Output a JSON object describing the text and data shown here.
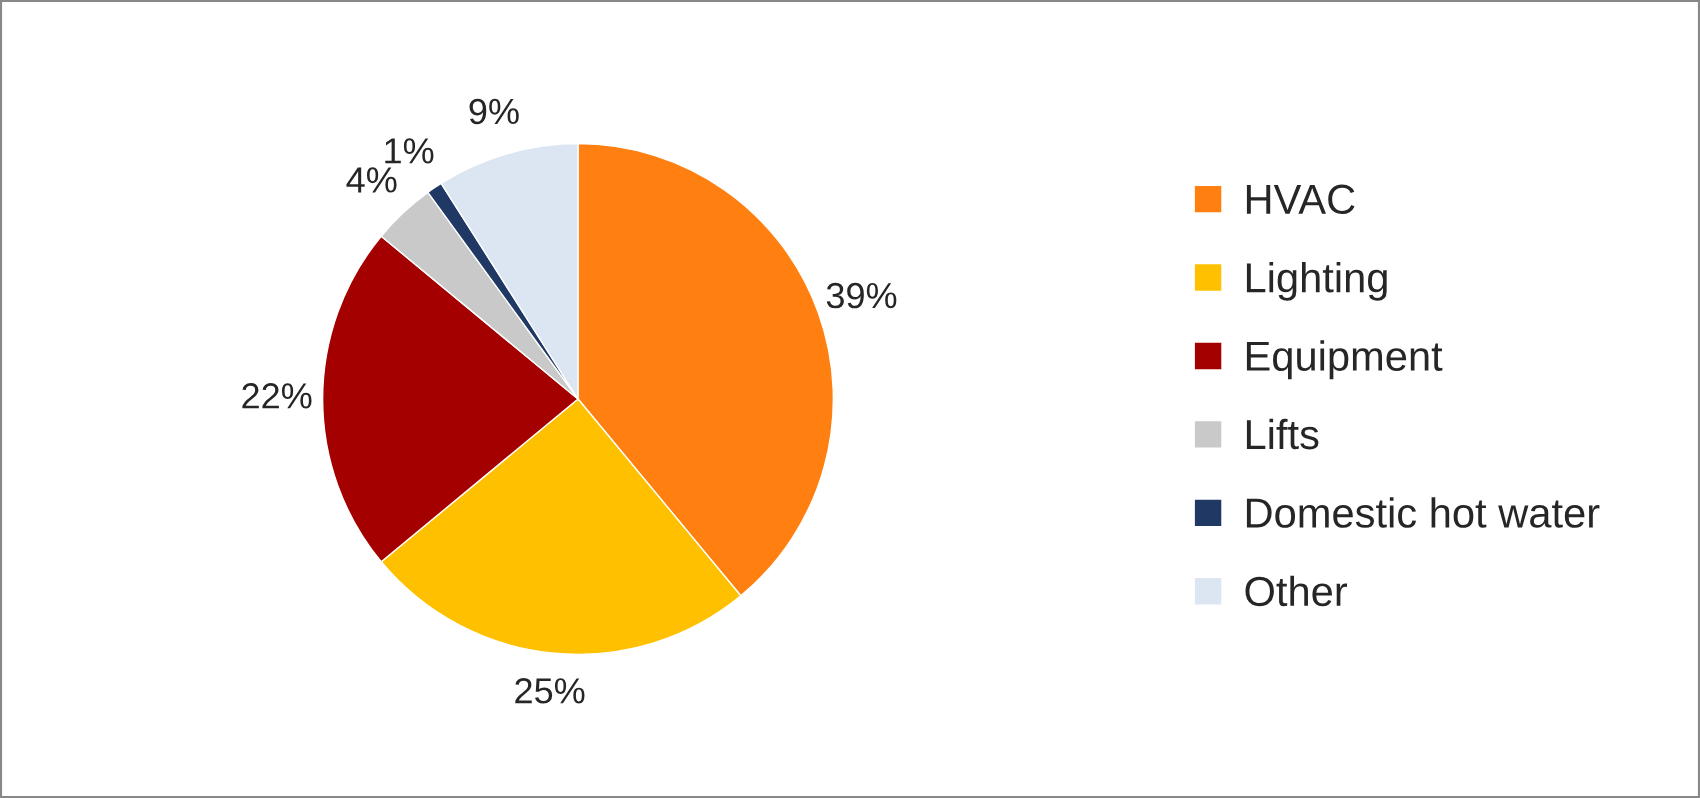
{
  "chart_data": {
    "type": "pie",
    "categories": [
      "HVAC",
      "Lighting",
      "Equipment",
      "Lifts",
      "Domestic hot water",
      "Other"
    ],
    "values": [
      39,
      25,
      22,
      4,
      1,
      9
    ],
    "colors": [
      "#ff8010",
      "#ffc000",
      "#a50000",
      "#c9c9c9",
      "#1f3864",
      "#dce6f2"
    ],
    "value_labels": [
      "39%",
      "25%",
      "22%",
      "4%",
      "1%",
      "9%"
    ],
    "legend": "right"
  }
}
